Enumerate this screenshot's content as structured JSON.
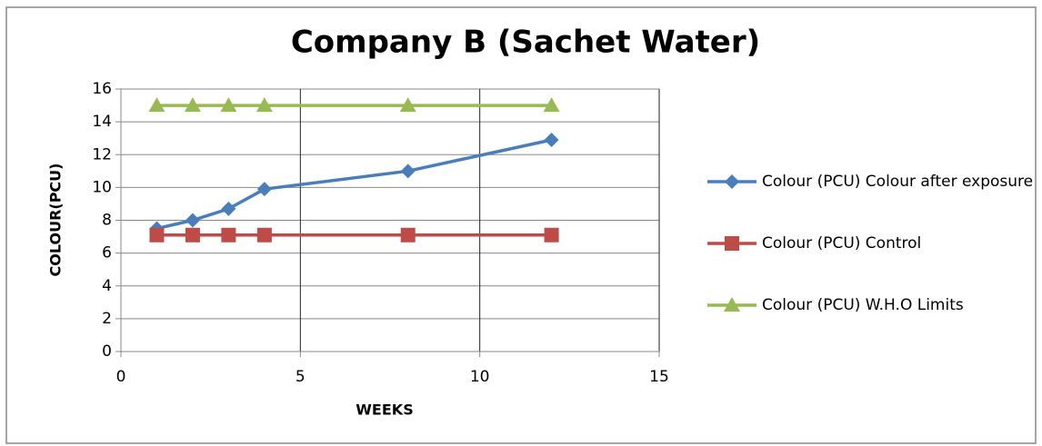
{
  "chart_data": {
    "type": "line",
    "title": "Company  B (Sachet Water)",
    "xlabel": "WEEKS",
    "ylabel": "COLOUR(PCU)",
    "xlim": [
      0,
      15
    ],
    "xticks": [
      0,
      5,
      10,
      15
    ],
    "ylim": [
      0,
      16
    ],
    "yticks": [
      0,
      2,
      4,
      6,
      8,
      10,
      12,
      14,
      16
    ],
    "grid": true,
    "legend": "right",
    "series": [
      {
        "name": "Colour (PCU) Colour after exposure",
        "color": "#4a7ebb",
        "marker": "diamond",
        "x": [
          1,
          2,
          3,
          4,
          8,
          12
        ],
        "values": [
          7.5,
          8,
          8.7,
          9.9,
          11,
          12.9
        ]
      },
      {
        "name": "Colour (PCU) Control",
        "color": "#be4b48",
        "marker": "square",
        "x": [
          1,
          2,
          3,
          4,
          8,
          12
        ],
        "values": [
          7.1,
          7.1,
          7.1,
          7.1,
          7.1,
          7.1
        ]
      },
      {
        "name": "Colour (PCU) W.H.O Limits",
        "color": "#98b954",
        "marker": "triangle",
        "x": [
          1,
          2,
          3,
          4,
          8,
          12
        ],
        "values": [
          15,
          15,
          15,
          15,
          15,
          15
        ]
      }
    ]
  }
}
